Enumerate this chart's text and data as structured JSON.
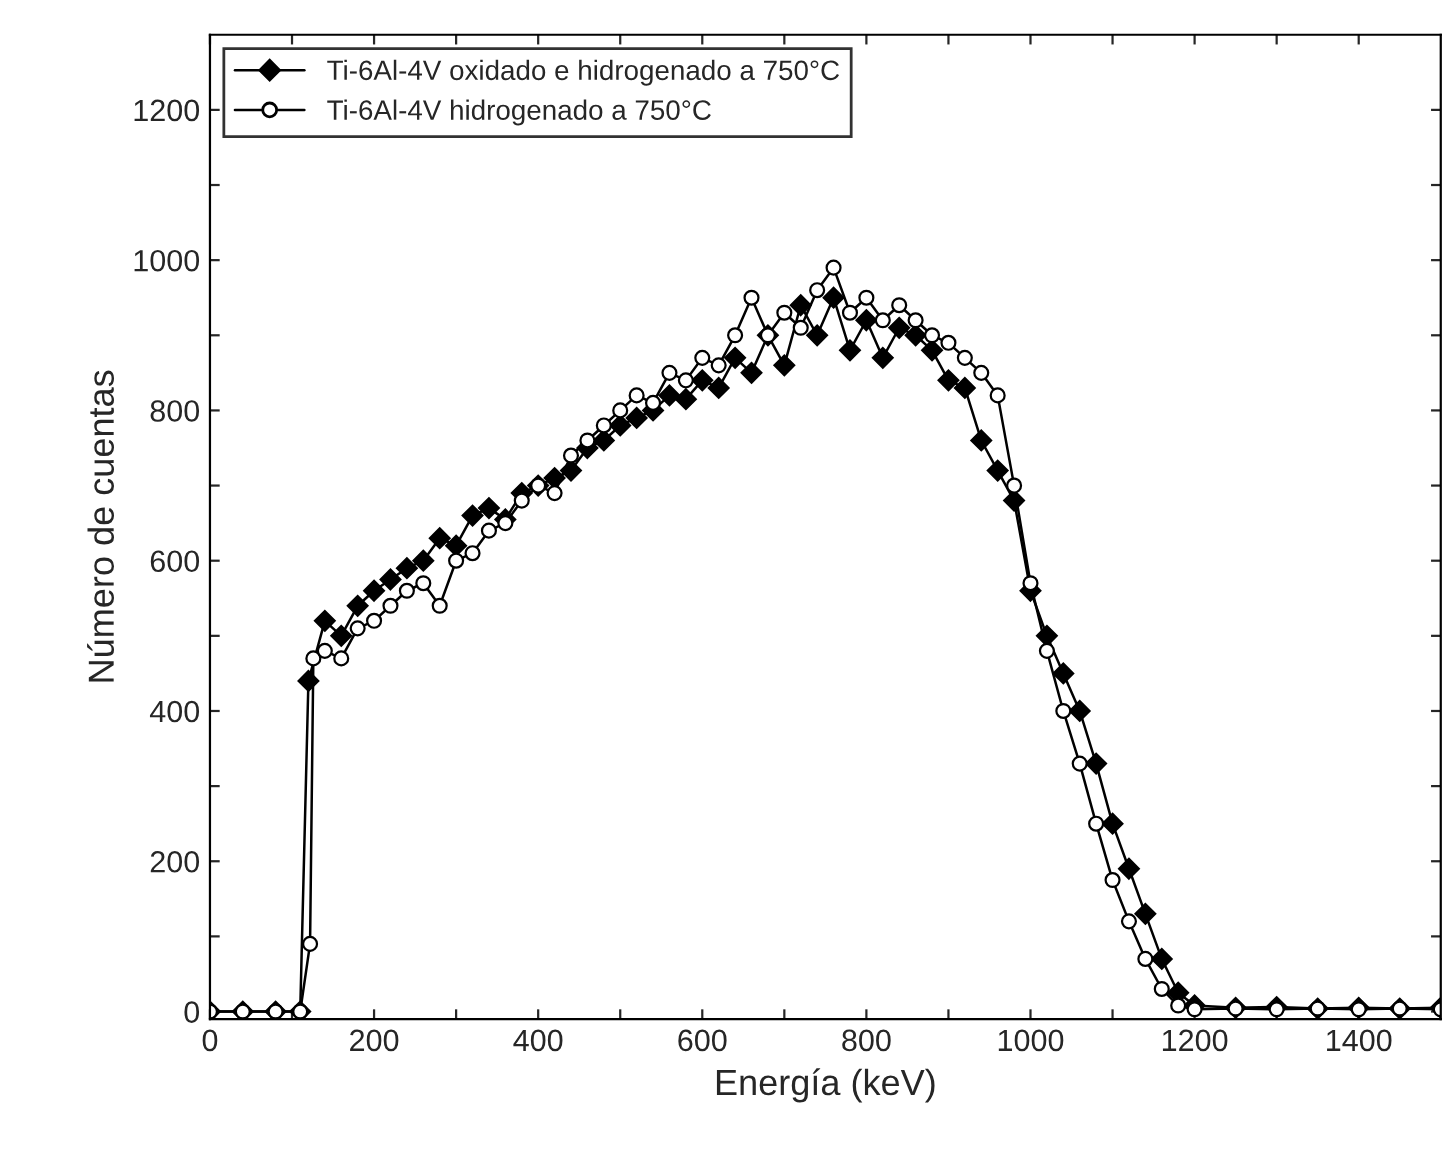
{
  "chart_data": {
    "type": "line",
    "xlabel": "Energía (keV)",
    "ylabel": "Número de cuentas",
    "xlim": [
      0,
      1500
    ],
    "ylim": [
      -10,
      1300
    ],
    "xticks": [
      0,
      {
        "value": 100,
        "label": null
      },
      200,
      {
        "value": 300,
        "label": null
      },
      400,
      {
        "value": 500,
        "label": null
      },
      600,
      {
        "value": 700,
        "label": null
      },
      800,
      {
        "value": 900,
        "label": null
      },
      1000,
      {
        "value": 1100,
        "label": null
      },
      1200,
      {
        "value": 1300,
        "label": null
      },
      1400
    ],
    "yticks": [
      0,
      {
        "value": 100,
        "label": null
      },
      200,
      {
        "value": 300,
        "label": null
      },
      400,
      {
        "value": 500,
        "label": null
      },
      600,
      {
        "value": 700,
        "label": null
      },
      800,
      {
        "value": 900,
        "label": null
      },
      1000,
      {
        "value": 1100,
        "label": null
      },
      1200
    ],
    "grid": false,
    "legend": "top left",
    "line_style": "solid",
    "series": [
      {
        "name": "Ti-6Al-4V oxidado e hidrogenado a 750°C",
        "color": "#000000",
        "marker": "diamond",
        "x": [
          0,
          40,
          80,
          110,
          120,
          140,
          160,
          180,
          200,
          220,
          240,
          260,
          280,
          300,
          320,
          340,
          360,
          380,
          400,
          420,
          440,
          460,
          480,
          500,
          520,
          540,
          560,
          580,
          600,
          620,
          640,
          660,
          680,
          700,
          720,
          740,
          760,
          780,
          800,
          820,
          840,
          860,
          880,
          900,
          920,
          940,
          960,
          980,
          1000,
          1020,
          1040,
          1060,
          1080,
          1100,
          1120,
          1140,
          1160,
          1180,
          1200,
          1250,
          1300,
          1350,
          1400,
          1450,
          1500
        ],
        "values": [
          0,
          0,
          0,
          0,
          440,
          520,
          500,
          540,
          560,
          575,
          590,
          600,
          630,
          620,
          660,
          670,
          655,
          690,
          700,
          710,
          720,
          750,
          760,
          780,
          790,
          800,
          820,
          815,
          840,
          830,
          870,
          850,
          900,
          860,
          940,
          900,
          950,
          880,
          920,
          870,
          910,
          900,
          880,
          840,
          830,
          760,
          720,
          680,
          560,
          500,
          450,
          400,
          330,
          250,
          190,
          130,
          70,
          25,
          8,
          5,
          6,
          4,
          5,
          4,
          5
        ]
      },
      {
        "name": "Ti-6Al-4V hidrogenado a 750°C",
        "color": "#000000",
        "marker": "circle",
        "x": [
          0,
          40,
          80,
          110,
          122,
          126,
          140,
          160,
          180,
          200,
          220,
          240,
          260,
          280,
          300,
          320,
          340,
          360,
          380,
          400,
          420,
          440,
          460,
          480,
          500,
          520,
          540,
          560,
          580,
          600,
          620,
          640,
          660,
          680,
          700,
          720,
          740,
          760,
          780,
          800,
          820,
          840,
          860,
          880,
          900,
          920,
          940,
          960,
          980,
          1000,
          1020,
          1040,
          1060,
          1080,
          1100,
          1120,
          1140,
          1160,
          1180,
          1200,
          1250,
          1300,
          1350,
          1400,
          1450,
          1500
        ],
        "values": [
          0,
          0,
          0,
          0,
          90,
          470,
          480,
          470,
          510,
          520,
          540,
          560,
          570,
          540,
          600,
          610,
          640,
          650,
          680,
          700,
          690,
          740,
          760,
          780,
          800,
          820,
          810,
          850,
          840,
          870,
          860,
          900,
          950,
          900,
          930,
          910,
          960,
          990,
          930,
          950,
          920,
          940,
          920,
          900,
          890,
          870,
          850,
          820,
          700,
          570,
          480,
          400,
          330,
          250,
          175,
          120,
          70,
          30,
          8,
          3,
          4,
          3,
          4,
          3,
          4,
          3
        ]
      }
    ]
  }
}
